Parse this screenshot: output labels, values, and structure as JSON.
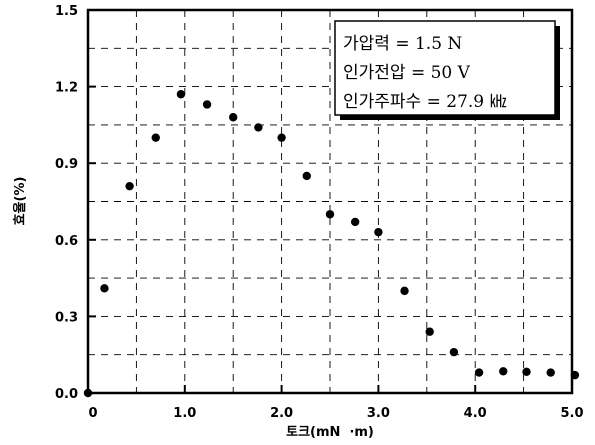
{
  "chart_data": {
    "type": "scatter",
    "xlabel": "토크(mN  ·m)",
    "ylabel": "효율(%)",
    "xlim": [
      0,
      5.0
    ],
    "ylim": [
      0,
      1.5
    ],
    "x_ticks": [
      0,
      1.0,
      2.0,
      3.0,
      4.0,
      5.0
    ],
    "x_tick_labels": [
      "0",
      "1.0",
      "2.0",
      "3.0",
      "4.0",
      "5.0"
    ],
    "y_ticks": [
      0.0,
      0.3,
      0.6,
      0.9,
      1.2,
      1.5
    ],
    "y_tick_labels": [
      "0.0",
      "0.3",
      "0.6",
      "0.9",
      "1.2",
      "1.5"
    ],
    "grid": true,
    "grid_style": "dashed",
    "legend_position": "top-right",
    "annotations": [
      "가압력 = 1.5 N",
      "인가전압 = 50 V",
      "인가주파수 = 27.9 ㎑"
    ],
    "series": [
      {
        "x": [
          0.0,
          0.17,
          0.43,
          0.7,
          0.96,
          1.23,
          1.5,
          1.76,
          2.0,
          2.26,
          2.5,
          2.76,
          3.0,
          3.27,
          3.53,
          3.78,
          4.04,
          4.29,
          4.53,
          4.78,
          5.03
        ],
        "y": [
          0.0,
          0.41,
          0.81,
          1.0,
          1.17,
          1.13,
          1.08,
          1.04,
          1.0,
          0.85,
          0.7,
          0.67,
          0.63,
          0.4,
          0.24,
          0.16,
          0.08,
          0.085,
          0.083,
          0.08,
          0.07
        ]
      }
    ]
  }
}
